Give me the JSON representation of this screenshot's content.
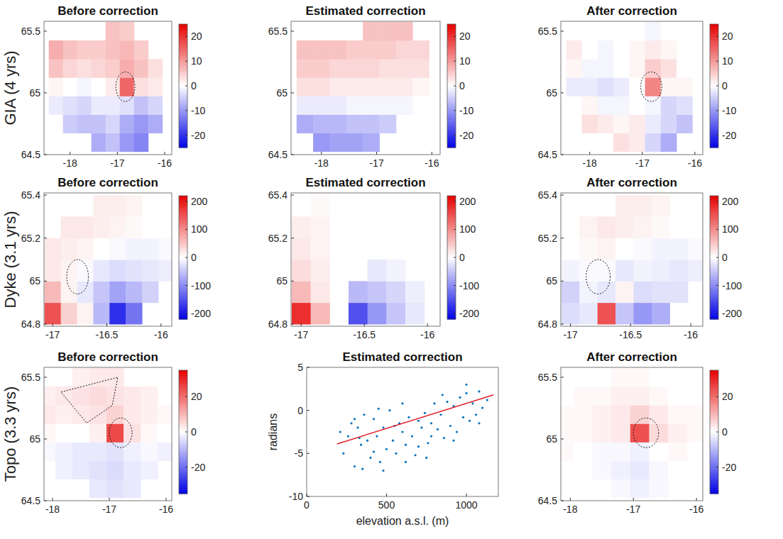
{
  "chart_data": [
    {
      "type": "heatmap",
      "title": "Before correction",
      "ylabel": "GIA (4 yrs)",
      "xlim": [
        -18.55,
        -15.85
      ],
      "ylim": [
        64.5,
        65.58
      ],
      "xticks": [
        -18,
        -17,
        -16
      ],
      "yticks": [
        64.5,
        65,
        65.5
      ],
      "x": [
        -18.3,
        -18.0,
        -17.7,
        -17.4,
        -17.1,
        -16.8,
        -16.5,
        -16.2
      ],
      "y": [
        64.6,
        64.75,
        64.9,
        65.05,
        65.2,
        65.35,
        65.5
      ],
      "cells": [
        [
          null,
          null,
          null,
          -8,
          -6,
          -10,
          -12,
          null
        ],
        [
          null,
          -5,
          -6,
          -6,
          -4,
          -8,
          -10,
          -8
        ],
        [
          -2,
          -3,
          -4,
          -2,
          -2,
          -3,
          -6,
          -4
        ],
        [
          1,
          0,
          -1,
          0,
          2,
          15,
          3,
          2
        ],
        [
          6,
          4,
          3,
          4,
          5,
          8,
          6,
          3
        ],
        [
          8,
          6,
          5,
          5,
          6,
          7,
          5,
          null
        ],
        [
          null,
          null,
          null,
          null,
          6,
          5,
          null,
          null
        ]
      ],
      "colorbar": {
        "range": [
          -25,
          25
        ],
        "ticks": [
          -20,
          -10,
          0,
          10,
          20
        ]
      },
      "regions": [
        {
          "shape": "ellipse",
          "center": [
            -16.83,
            65.05
          ],
          "radii": [
            0.2,
            0.12
          ]
        }
      ]
    },
    {
      "type": "heatmap",
      "title": "Estimated correction",
      "xlim": [
        -18.55,
        -15.85
      ],
      "ylim": [
        64.5,
        65.58
      ],
      "xticks": [
        -18,
        -17,
        -16
      ],
      "yticks": [
        64.5,
        65,
        65.5
      ],
      "x": [
        -18.3,
        -18.0,
        -17.7,
        -17.4,
        -17.1,
        -16.8,
        -16.5,
        -16.2
      ],
      "y": [
        64.6,
        64.75,
        64.9,
        65.05,
        65.2,
        65.35,
        65.5
      ],
      "cells": [
        [
          null,
          -10,
          -9,
          -9,
          -8,
          null,
          null,
          null
        ],
        [
          -8,
          -7,
          -7,
          -6,
          -6,
          -5,
          null,
          null
        ],
        [
          -2,
          -2,
          -2,
          -1,
          -1,
          -1,
          -1,
          null
        ],
        [
          3,
          3,
          2,
          2,
          2,
          2,
          2,
          1
        ],
        [
          5,
          5,
          4,
          4,
          4,
          3,
          3,
          3
        ],
        [
          6,
          6,
          6,
          5,
          5,
          5,
          4,
          4
        ],
        [
          null,
          null,
          null,
          null,
          6,
          6,
          6,
          null
        ]
      ],
      "colorbar": {
        "range": [
          -25,
          25
        ],
        "ticks": [
          -20,
          -10,
          0,
          10,
          20
        ]
      }
    },
    {
      "type": "heatmap",
      "title": "After correction",
      "xlim": [
        -18.55,
        -15.85
      ],
      "ylim": [
        64.5,
        65.58
      ],
      "xticks": [
        -18,
        -17,
        -16
      ],
      "yticks": [
        64.5,
        65,
        65.5
      ],
      "x": [
        -18.3,
        -18.0,
        -17.7,
        -17.4,
        -17.1,
        -16.8,
        -16.5,
        -16.2
      ],
      "y": [
        64.6,
        64.75,
        64.9,
        65.05,
        65.2,
        65.35,
        65.5
      ],
      "cells": [
        [
          null,
          null,
          null,
          3,
          2,
          -4,
          -8,
          null
        ],
        [
          null,
          3,
          2,
          1,
          2,
          -2,
          -4,
          -6
        ],
        [
          0,
          1,
          -1,
          -1,
          0,
          -1,
          -4,
          -3
        ],
        [
          -2,
          -2,
          -3,
          -2,
          0,
          12,
          1,
          1
        ],
        [
          1,
          -1,
          -1,
          0,
          1,
          5,
          3,
          0
        ],
        [
          2,
          0,
          -1,
          0,
          1,
          2,
          1,
          null
        ],
        [
          null,
          null,
          null,
          null,
          0,
          -1,
          null,
          null
        ]
      ],
      "colorbar": {
        "range": [
          -25,
          25
        ],
        "ticks": [
          -20,
          -10,
          0,
          10,
          20
        ]
      },
      "regions": [
        {
          "shape": "ellipse",
          "center": [
            -16.83,
            65.05
          ],
          "radii": [
            0.2,
            0.12
          ]
        }
      ]
    },
    {
      "type": "heatmap",
      "title": "Before correction",
      "ylabel": "Dyke (3.1 yrs)",
      "xlim": [
        -17.08,
        -15.9
      ],
      "ylim": [
        64.79,
        65.41
      ],
      "xticks": [
        -17,
        -16.5,
        -16
      ],
      "yticks": [
        64.8,
        65,
        65.2,
        65.4
      ],
      "x": [
        -17.0,
        -16.85,
        -16.7,
        -16.55,
        -16.4,
        -16.25,
        -16.1,
        -15.95
      ],
      "y": [
        64.85,
        64.95,
        65.05,
        65.15,
        65.25,
        65.35
      ],
      "cells": [
        [
          150,
          40,
          10,
          -60,
          -180,
          -120,
          null,
          null
        ],
        [
          60,
          10,
          -20,
          -50,
          -80,
          -60,
          -40,
          null
        ],
        [
          20,
          10,
          -5,
          -20,
          -30,
          -25,
          -20,
          -15
        ],
        [
          20,
          15,
          10,
          0,
          -5,
          -10,
          -10,
          -5
        ],
        [
          null,
          20,
          20,
          15,
          10,
          5,
          0,
          null
        ],
        [
          null,
          null,
          null,
          15,
          15,
          10,
          null,
          null
        ]
      ],
      "colorbar": {
        "range": [
          -220,
          220
        ],
        "ticks": [
          -200,
          -100,
          0,
          100,
          200
        ]
      },
      "regions": [
        {
          "shape": "ellipse",
          "center": [
            -16.77,
            65.02
          ],
          "radii": [
            0.1,
            0.08
          ]
        }
      ]
    },
    {
      "type": "heatmap",
      "title": "Estimated correction",
      "xlim": [
        -17.08,
        -15.9
      ],
      "ylim": [
        64.79,
        65.41
      ],
      "xticks": [
        -17,
        -16.5,
        -16
      ],
      "yticks": [
        64.8,
        65,
        65.2,
        65.4
      ],
      "x": [
        -17.0,
        -16.85,
        -16.7,
        -16.55,
        -16.4,
        -16.25,
        -16.1,
        -15.95
      ],
      "y": [
        64.85,
        64.95,
        65.05,
        65.15,
        65.25,
        65.35
      ],
      "cells": [
        [
          180,
          60,
          null,
          -150,
          -90,
          -50,
          -20,
          null
        ],
        [
          60,
          20,
          null,
          -60,
          -50,
          -35,
          -15,
          null
        ],
        [
          30,
          15,
          null,
          null,
          -20,
          -10,
          null,
          null
        ],
        [
          20,
          10,
          null,
          null,
          null,
          null,
          null,
          null
        ],
        [
          15,
          10,
          null,
          null,
          null,
          null,
          null,
          null
        ],
        [
          null,
          5,
          null,
          null,
          null,
          null,
          null,
          null
        ]
      ],
      "colorbar": {
        "range": [
          -220,
          220
        ],
        "ticks": [
          -200,
          -100,
          0,
          100,
          200
        ]
      }
    },
    {
      "type": "heatmap",
      "title": "After correction",
      "xlim": [
        -17.08,
        -15.9
      ],
      "ylim": [
        64.79,
        65.41
      ],
      "xticks": [
        -17,
        -16.5,
        -16
      ],
      "yticks": [
        64.8,
        65,
        65.2,
        65.4
      ],
      "x": [
        -17.0,
        -16.85,
        -16.7,
        -16.55,
        -16.4,
        -16.25,
        -16.1,
        -15.95
      ],
      "y": [
        64.85,
        64.95,
        65.05,
        65.15,
        65.25,
        65.35
      ],
      "cells": [
        [
          -30,
          -20,
          150,
          -50,
          -90,
          -70,
          null,
          null
        ],
        [
          -40,
          -10,
          -20,
          10,
          -30,
          -25,
          -25,
          null
        ],
        [
          -10,
          -5,
          -5,
          -20,
          -10,
          -15,
          -20,
          -15
        ],
        [
          0,
          5,
          10,
          0,
          -5,
          -10,
          -10,
          -5
        ],
        [
          null,
          10,
          20,
          15,
          10,
          5,
          0,
          null
        ],
        [
          null,
          null,
          null,
          15,
          15,
          10,
          null,
          null
        ]
      ],
      "colorbar": {
        "range": [
          -220,
          220
        ],
        "ticks": [
          -200,
          -100,
          0,
          100,
          200
        ]
      },
      "regions": [
        {
          "shape": "ellipse",
          "center": [
            -16.77,
            65.02
          ],
          "radii": [
            0.1,
            0.08
          ]
        }
      ]
    },
    {
      "type": "heatmap",
      "title": "Before correction",
      "ylabel": "Topo (3.3 yrs)",
      "xlim": [
        -18.15,
        -15.9
      ],
      "ylim": [
        64.5,
        65.58
      ],
      "xticks": [
        -18,
        -17,
        -16
      ],
      "yticks": [
        64.5,
        65,
        65.5
      ],
      "x": [
        -18.1,
        -17.8,
        -17.5,
        -17.2,
        -16.9,
        -16.6,
        -16.3,
        -16.0
      ],
      "y": [
        64.6,
        64.75,
        64.9,
        65.05,
        65.2,
        65.35,
        65.5
      ],
      "cells": [
        [
          null,
          null,
          null,
          -3,
          -4,
          -3,
          null,
          null
        ],
        [
          null,
          -2,
          -3,
          -4,
          -5,
          -3,
          -2,
          null
        ],
        [
          -1,
          -2,
          -3,
          -3,
          -4,
          -2,
          -1,
          -2
        ],
        [
          1,
          0,
          0,
          2,
          25,
          4,
          1,
          0
        ],
        [
          3,
          2,
          3,
          4,
          6,
          3,
          2,
          1
        ],
        [
          2,
          3,
          4,
          5,
          4,
          3,
          2,
          null
        ],
        [
          null,
          null,
          2,
          3,
          3,
          null,
          null,
          null
        ]
      ],
      "colorbar": {
        "range": [
          -35,
          35
        ],
        "ticks": [
          -20,
          0,
          20
        ]
      },
      "regions": [
        {
          "shape": "ellipse",
          "center": [
            -16.8,
            65.05
          ],
          "radii": [
            0.2,
            0.12
          ]
        },
        {
          "shape": "polygon",
          "points": [
            [
              -17.85,
              65.38
            ],
            [
              -16.85,
              65.5
            ],
            [
              -16.95,
              65.27
            ],
            [
              -17.4,
              65.13
            ],
            [
              -17.85,
              65.38
            ]
          ]
        }
      ]
    },
    {
      "type": "scatter",
      "title": "Estimated correction",
      "xlabel": "elevation a.s.l. (m)",
      "ylabel": "radians",
      "xlim": [
        0,
        1200
      ],
      "ylim": [
        -10,
        5
      ],
      "xticks": [
        0,
        500,
        1000
      ],
      "yticks": [
        -10,
        -5,
        0,
        5
      ],
      "color": "#0072bd",
      "marker": "dot",
      "x": [
        210,
        230,
        260,
        280,
        300,
        320,
        340,
        360,
        380,
        400,
        420,
        440,
        460,
        480,
        500,
        520,
        540,
        560,
        580,
        600,
        620,
        640,
        660,
        680,
        700,
        720,
        740,
        760,
        780,
        800,
        820,
        840,
        860,
        880,
        900,
        920,
        940,
        960,
        980,
        1000,
        1020,
        1040,
        1060,
        1080,
        1100,
        1130,
        300,
        350,
        420,
        480,
        550,
        620,
        700,
        780,
        850,
        920,
        1000,
        1080,
        330,
        450,
        600,
        750
      ],
      "y": [
        -2.5,
        -5,
        -3,
        -1.5,
        -6.5,
        -2,
        -4,
        -0.5,
        -3.5,
        -5.5,
        -1,
        -3,
        -6,
        -2,
        -4.5,
        0,
        -3.5,
        -5,
        -1.5,
        -2.5,
        -4,
        -0.8,
        -3,
        -5.2,
        -1.2,
        -2,
        -0.3,
        -3.8,
        -1.5,
        0.8,
        -2.2,
        -0.5,
        -3.2,
        1,
        -1.8,
        0.5,
        -2.5,
        1.5,
        -0.8,
        2,
        -1.2,
        0.8,
        -0.5,
        2.2,
        0.3,
        1.2,
        -1,
        -6.8,
        -4.8,
        -7,
        -1.8,
        -6,
        -4.2,
        -3,
        1.8,
        -3.5,
        3,
        -1.5,
        -3.2,
        0.2,
        0.8,
        -5.5
      ],
      "line": {
        "x": [
          190,
          1170
        ],
        "y": [
          -3.9,
          1.8
        ],
        "color": "#e0202a",
        "line_style": "solid"
      }
    },
    {
      "type": "heatmap",
      "title": "After correction",
      "xlim": [
        -18.15,
        -15.9
      ],
      "ylim": [
        64.5,
        65.58
      ],
      "xticks": [
        -18,
        -17,
        -16
      ],
      "yticks": [
        64.5,
        65,
        65.5
      ],
      "x": [
        -18.1,
        -17.8,
        -17.5,
        -17.2,
        -16.9,
        -16.6,
        -16.3,
        -16.0
      ],
      "y": [
        64.6,
        64.75,
        64.9,
        65.05,
        65.2,
        65.35,
        65.5
      ],
      "cells": [
        [
          null,
          null,
          null,
          -1,
          -2,
          -1,
          null,
          null
        ],
        [
          null,
          0,
          -1,
          -2,
          -3,
          -1,
          0,
          null
        ],
        [
          1,
          0,
          -1,
          -1,
          -2,
          0,
          1,
          0
        ],
        [
          1,
          1,
          2,
          3,
          24,
          5,
          2,
          1
        ],
        [
          1,
          1,
          2,
          3,
          6,
          3,
          1,
          1
        ],
        [
          0,
          1,
          1,
          2,
          2,
          1,
          0,
          null
        ],
        [
          null,
          null,
          0,
          1,
          1,
          null,
          null,
          null
        ]
      ],
      "colorbar": {
        "range": [
          -35,
          35
        ],
        "ticks": [
          -20,
          0,
          20
        ]
      },
      "regions": [
        {
          "shape": "ellipse",
          "center": [
            -16.8,
            65.05
          ],
          "radii": [
            0.2,
            0.12
          ]
        }
      ]
    }
  ]
}
